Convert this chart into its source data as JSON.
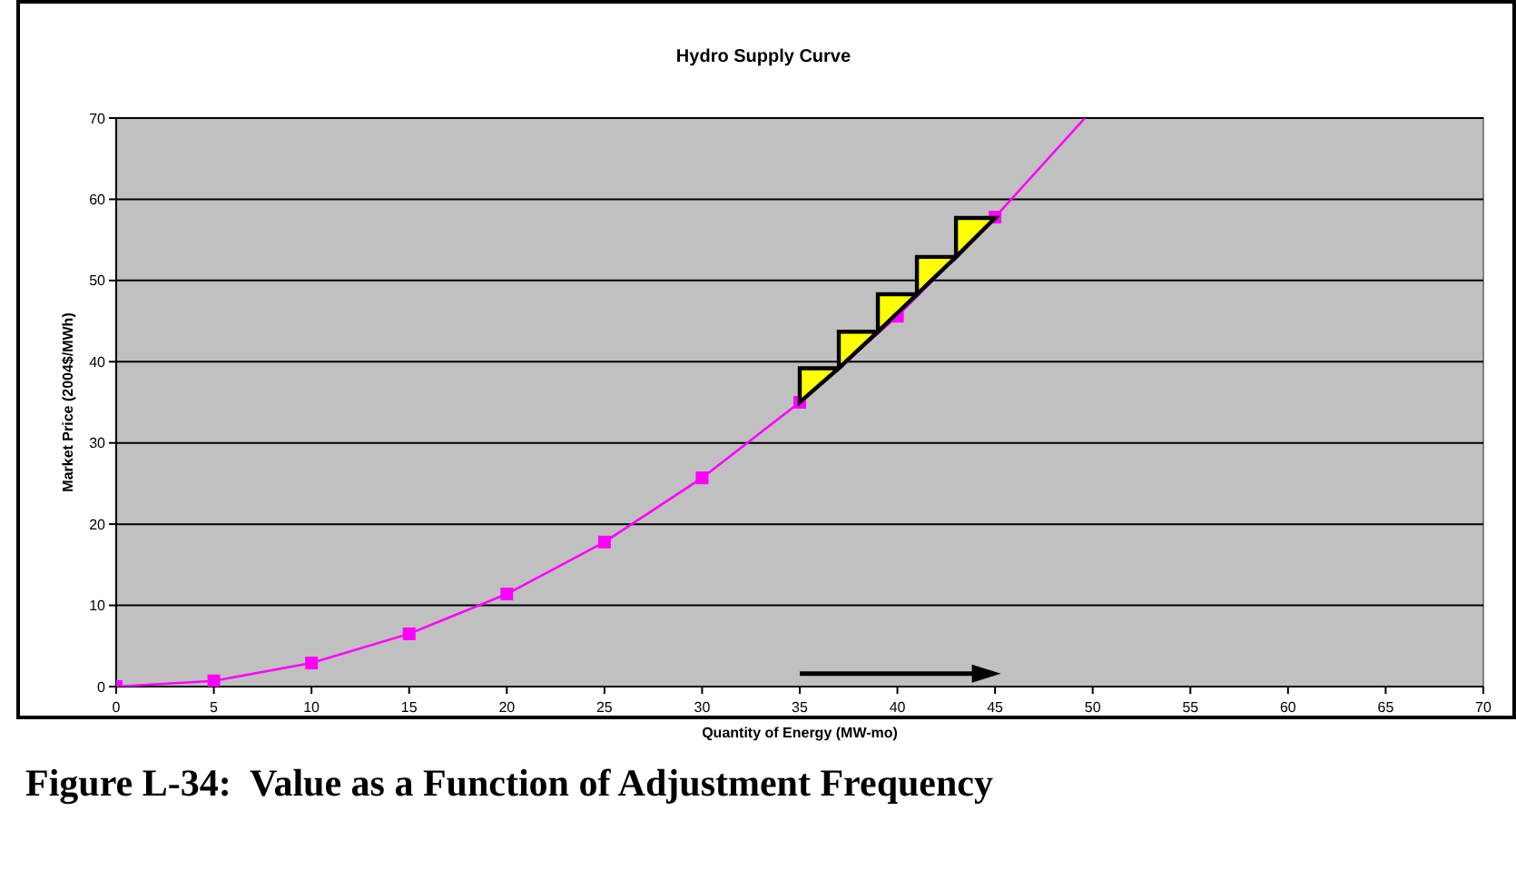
{
  "chart_data": {
    "type": "line",
    "title": "Hydro Supply Curve",
    "xlabel": "Quantity of Energy (MW-mo)",
    "ylabel": "Market Price (2004$/MWh)",
    "annotations": [
      "Figure L-34:  Value as a Function of Adjustment Frequency"
    ],
    "series": [
      {
        "color": "#ff00ff",
        "marker": "square",
        "x": [
          0,
          5,
          10,
          15,
          20,
          25,
          30,
          35,
          40,
          45
        ],
        "values": [
          0,
          0.7,
          2.9,
          6.5,
          11.4,
          17.8,
          25.7,
          35,
          45.6,
          57.8
        ]
      },
      {
        "color": "#ff00ff",
        "marker": "none",
        "x": [
          45,
          49.6
        ],
        "values": [
          57.8,
          70
        ]
      }
    ],
    "xlim": [
      0,
      70
    ],
    "xticks": [
      0,
      5,
      10,
      15,
      20,
      25,
      30,
      35,
      40,
      45,
      50,
      55,
      60,
      65,
      70
    ],
    "ylim": [
      0,
      70
    ],
    "yticks": [
      0,
      10,
      20,
      30,
      40,
      50,
      60,
      70
    ],
    "grid": "y"
  }
}
